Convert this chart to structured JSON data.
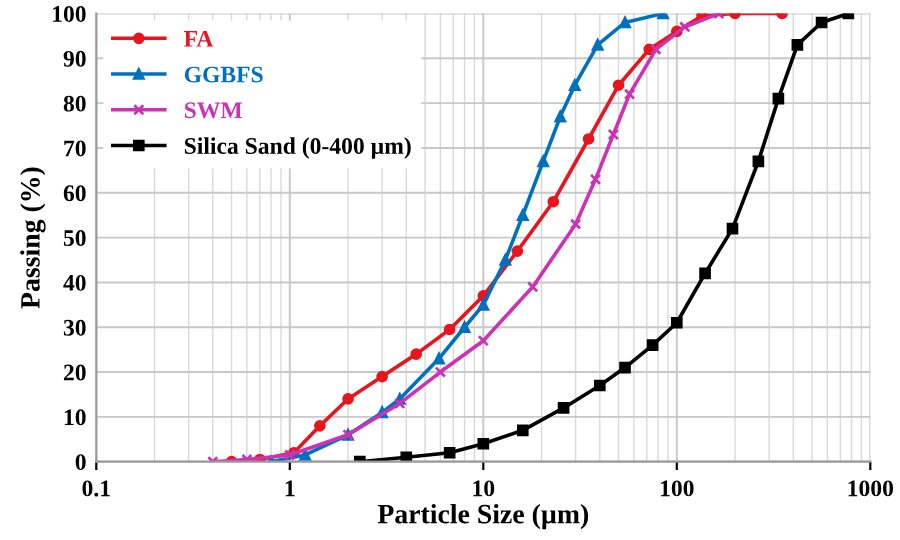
{
  "chart_data": {
    "type": "line",
    "xlabel": "Particle Size (µm)",
    "ylabel": "Passing (%)",
    "log": "x",
    "xlim": [
      0.1,
      1000
    ],
    "xticks": [
      0.1,
      1,
      10,
      100,
      1000
    ],
    "ylim": [
      0,
      100
    ],
    "yticks": [
      0,
      10,
      20,
      30,
      40,
      50,
      60,
      70,
      80,
      90,
      100
    ],
    "grid": true,
    "legend": "top left",
    "line_style": "solid",
    "series": [
      {
        "name": "FA",
        "color": "#e8141e",
        "marker": "circle",
        "x": [
          0.5,
          0.7,
          1.05,
          1.43,
          2,
          3,
          4.5,
          6.7,
          10,
          15,
          23,
          35,
          50,
          72,
          100,
          135,
          200,
          350
        ],
        "values": [
          0,
          0.5,
          2,
          8,
          14,
          19,
          24,
          29.5,
          37,
          47,
          58,
          72,
          84,
          92,
          96,
          99.5,
          100,
          100
        ]
      },
      {
        "name": "GGBFS",
        "color": "#0070c0",
        "marker": "triangle",
        "x": [
          0.8,
          1.2,
          2,
          3,
          3.7,
          5.9,
          8,
          10,
          13,
          16,
          20.4,
          25,
          29.7,
          39,
          54,
          85
        ],
        "values": [
          0,
          1.5,
          6,
          11,
          14,
          23,
          30,
          35,
          45,
          55,
          67,
          77,
          84,
          93,
          98,
          100
        ]
      },
      {
        "name": "SWM",
        "color": "#cc33b4",
        "marker": "cross",
        "x": [
          0.4,
          0.6,
          1,
          2,
          3.7,
          6,
          10,
          18,
          30,
          38,
          47,
          57,
          78,
          110,
          165
        ],
        "values": [
          0,
          0.5,
          1.5,
          6,
          13,
          20,
          27,
          39,
          53,
          63,
          73,
          82,
          92,
          97,
          100
        ]
      },
      {
        "name": "Silica Sand (0-400 µm)",
        "color": "#000000",
        "marker": "square",
        "x": [
          2.3,
          4,
          6.7,
          10,
          16,
          26,
          40,
          54,
          75,
          100,
          140,
          194,
          264,
          335,
          420,
          560,
          770
        ],
        "values": [
          0,
          1,
          2,
          4,
          7,
          12,
          17,
          21,
          26,
          31,
          42,
          52,
          67,
          81,
          93,
          98,
          100
        ]
      }
    ]
  }
}
